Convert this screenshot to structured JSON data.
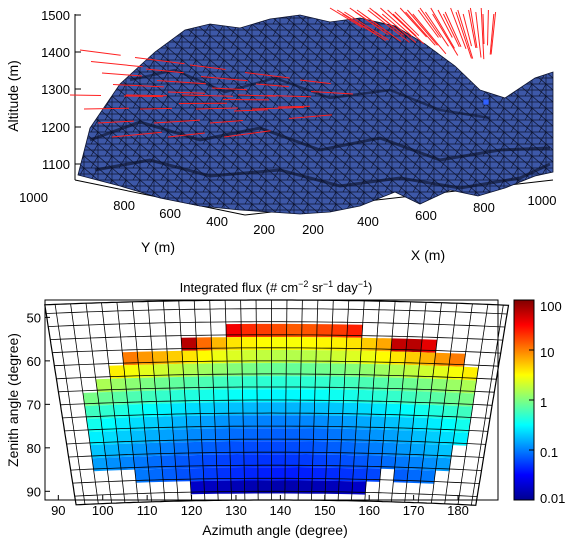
{
  "chart_data": [
    {
      "type": "surface",
      "zlabel": "Altitude (m)",
      "ylabel": "Y (m)",
      "xlabel": "X (m)",
      "zticks": [
        "1500",
        "1400",
        "1300",
        "1200",
        "1100"
      ],
      "yticks": [
        "1000",
        "800",
        "600",
        "400",
        "200"
      ],
      "xticks": [
        "200",
        "400",
        "600",
        "800",
        "1000"
      ],
      "zlim": [
        1050,
        1500
      ],
      "surface_color": "#3d58a8",
      "arrow_color": "#ff2020",
      "marker_color": "#3060ff"
    },
    {
      "type": "heatmap",
      "title_main": "Integrated flux (# cm",
      "title_exp1": "−2",
      "title_mid1": " sr",
      "title_exp2": "−1",
      "title_mid2": " day",
      "title_exp3": "−1",
      "title_end": ")",
      "xlabel": "Azimuth angle (degree)",
      "ylabel": "Zenith angle (degree)",
      "xticks": [
        "90",
        "100",
        "110",
        "120",
        "130",
        "140",
        "150",
        "160",
        "170",
        "180"
      ],
      "yticks": [
        "50",
        "60",
        "70",
        "80",
        "90"
      ],
      "xlim": [
        87,
        189
      ],
      "ylim": [
        46,
        92
      ],
      "colorbar_scale": "log",
      "colorbar_ticks": [
        "100",
        "10",
        "1",
        "0.1",
        "0.01"
      ],
      "colorbar_range": [
        0.01,
        100
      ],
      "bins": {
        "azimuth_start": 96,
        "azimuth_step": 3,
        "columns": 29,
        "zenith_start": 50,
        "zenith_step": 3,
        "rows": 14
      },
      "flux_rows": [
        {
          "zenith": 53,
          "azimuth_from": 129,
          "azimuth_to": 156,
          "pattern": "top",
          "values": [
            35,
            22,
            18,
            16,
            14,
            15,
            17,
            19,
            24
          ]
        },
        {
          "zenith": 56,
          "azimuth_from": 120,
          "azimuth_to": 171,
          "pattern": "row2",
          "values": [
            60,
            12,
            6,
            4,
            3.5,
            3.2,
            3,
            3,
            3.2,
            3.4,
            3.6,
            4,
            5,
            7,
            55,
            60,
            40
          ]
        },
        {
          "zenith": 59,
          "azimuth_from": 108,
          "azimuth_to": 177,
          "value_edge": 12,
          "value_center": 1.6
        },
        {
          "zenith": 62,
          "azimuth_from": 105,
          "azimuth_to": 180,
          "value_edge": 4,
          "value_center": 0.8
        },
        {
          "zenith": 65,
          "azimuth_from": 102,
          "azimuth_to": 180,
          "value_edge": 1.6,
          "value_center": 0.45
        },
        {
          "zenith": 68,
          "azimuth_from": 99,
          "azimuth_to": 180,
          "value_edge": 1.0,
          "value_center": 0.3
        },
        {
          "zenith": 71,
          "azimuth_from": 99,
          "azimuth_to": 180,
          "value_edge": 0.6,
          "value_center": 0.16
        },
        {
          "zenith": 74,
          "azimuth_from": 99,
          "azimuth_to": 180,
          "value_edge": 0.4,
          "value_center": 0.1
        },
        {
          "zenith": 77,
          "azimuth_from": 99,
          "azimuth_to": 180,
          "value_edge": 0.3,
          "value_center": 0.075
        },
        {
          "zenith": 80,
          "azimuth_from": 99,
          "azimuth_to": 177,
          "value_edge": 0.2,
          "value_center": 0.06
        },
        {
          "zenith": 83,
          "azimuth_from": 99,
          "azimuth_to": 177,
          "value_edge": 0.14,
          "value_center": 0.05
        },
        {
          "zenith": 86,
          "azimuth_from": 108,
          "azimuth_to": 174,
          "value_edge": 0.1,
          "value_center": 0.04,
          "gap_after": 162,
          "gap_to": 165
        },
        {
          "zenith": 89,
          "azimuth_from": 120,
          "azimuth_to": 159,
          "value_edge": 0.02,
          "value_center": 0.015
        }
      ]
    }
  ]
}
